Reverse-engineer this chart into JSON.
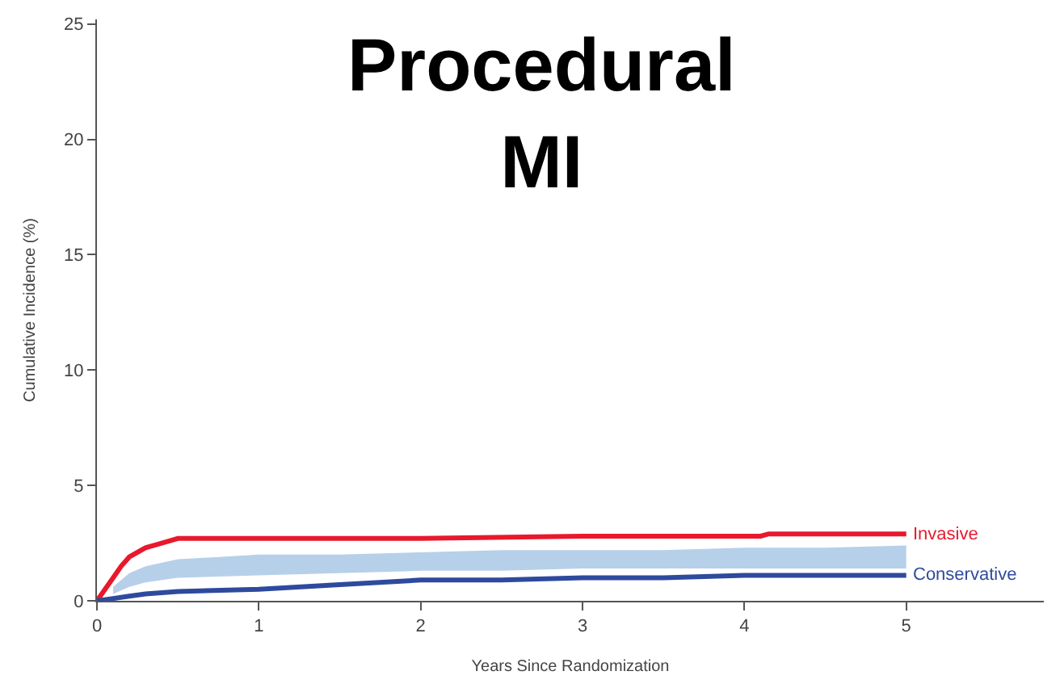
{
  "chart_data": {
    "type": "line",
    "title": "Procedural\nMI",
    "xlabel": "Years Since Randomization",
    "ylabel": "Cumulative Incidence (%)",
    "xlim": [
      0,
      5.85
    ],
    "ylim": [
      0,
      25.2
    ],
    "xticks": [
      0,
      1,
      2,
      3,
      4,
      5
    ],
    "yticks": [
      0,
      5,
      10,
      15,
      20,
      25
    ],
    "legend": false,
    "marker": "none",
    "line_style": "solid",
    "series": [
      {
        "type": "area",
        "color": "#b7d0ea",
        "values": [
          null,
          null,
          null,
          null,
          null,
          null,
          null,
          null,
          null,
          null,
          null,
          null,
          null
        ],
        "x": [
          0.1,
          0.2,
          0.3,
          0.5,
          1,
          1.5,
          2,
          2.5,
          3,
          3.5,
          4,
          4.5,
          5
        ],
        "lower": [
          0.3,
          0.6,
          0.8,
          1.0,
          1.1,
          1.2,
          1.3,
          1.3,
          1.4,
          1.4,
          1.4,
          1.4,
          1.4
        ],
        "upper": [
          0.6,
          1.2,
          1.5,
          1.8,
          2.0,
          2.0,
          2.1,
          2.2,
          2.2,
          2.2,
          2.3,
          2.3,
          2.4
        ]
      },
      {
        "name": "Invasive",
        "color": "#e8192c",
        "x": [
          0,
          0.05,
          0.1,
          0.15,
          0.2,
          0.3,
          0.4,
          0.5,
          1,
          2,
          3,
          4,
          4.1,
          4.15,
          5
        ],
        "values": [
          0,
          0.5,
          1.0,
          1.5,
          1.9,
          2.3,
          2.5,
          2.7,
          2.7,
          2.7,
          2.8,
          2.8,
          2.8,
          2.9,
          2.9
        ]
      },
      {
        "name": "Conservative",
        "color": "#2e4a9e",
        "x": [
          0,
          0.1,
          0.2,
          0.3,
          0.5,
          1,
          1.5,
          2,
          2.5,
          3,
          3.5,
          4,
          4.5,
          5
        ],
        "values": [
          0,
          0.1,
          0.2,
          0.3,
          0.4,
          0.5,
          0.7,
          0.9,
          0.9,
          1.0,
          1.0,
          1.1,
          1.1,
          1.1
        ]
      }
    ]
  }
}
